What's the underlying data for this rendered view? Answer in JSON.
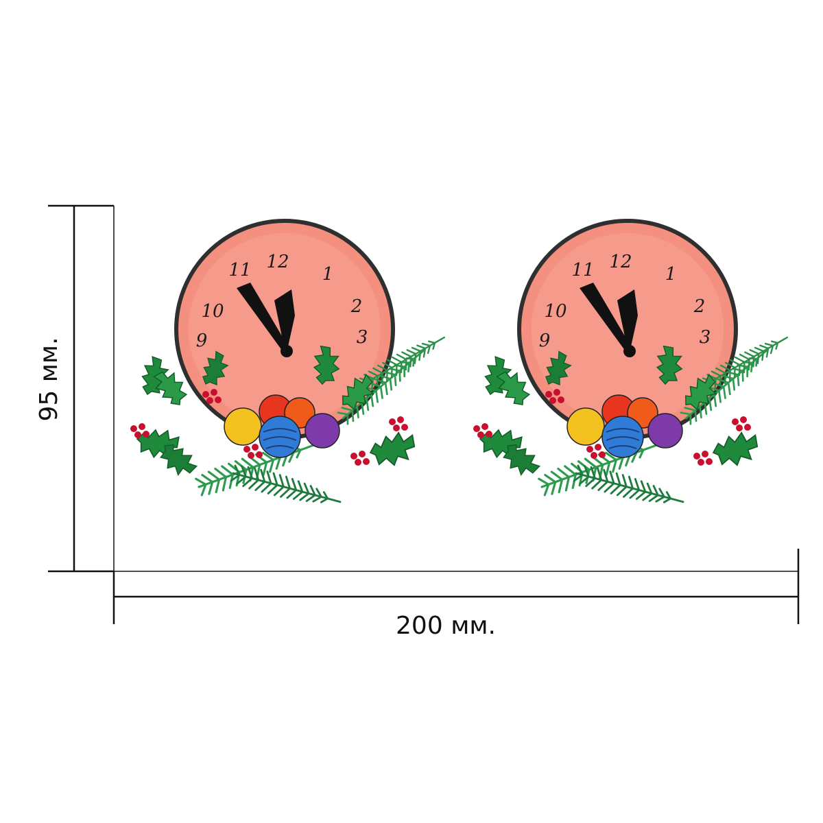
{
  "dimensions": {
    "height_label": "95 мм.",
    "width_label": "200 мм."
  },
  "artwork": {
    "clock_numerals": [
      "12",
      "1",
      "2",
      "3",
      "9",
      "10",
      "11"
    ],
    "colors": {
      "clock_face": "#f4907f",
      "clock_rim": "#2f2f2f",
      "holly": "#1f8a3c",
      "berry": "#c8102e",
      "pine": "#2e9a4e",
      "ornament_yellow": "#f3c220",
      "ornament_red": "#e8351f",
      "ornament_orange": "#f05a1a",
      "ornament_blue": "#2f7bd6",
      "ornament_purple": "#7d3aa8"
    },
    "icons": [
      "clock-icon",
      "holly-leaf-icon",
      "berry-icon",
      "pine-branch-icon",
      "ornament-icon"
    ]
  }
}
